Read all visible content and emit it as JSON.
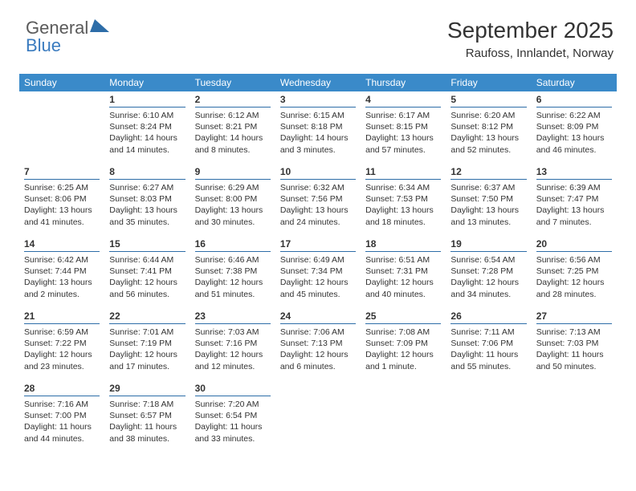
{
  "logo": {
    "part1": "General",
    "part2": "Blue"
  },
  "header": {
    "month": "September 2025",
    "location": "Raufoss, Innlandet, Norway"
  },
  "colors": {
    "header_bg": "#3a8ac9",
    "header_fg": "#ffffff",
    "rule": "#2d6da8",
    "text": "#333333",
    "bg": "#ffffff"
  },
  "weekdays": [
    "Sunday",
    "Monday",
    "Tuesday",
    "Wednesday",
    "Thursday",
    "Friday",
    "Saturday"
  ],
  "cells": [
    {
      "day": "",
      "lines": []
    },
    {
      "day": "1",
      "lines": [
        "Sunrise: 6:10 AM",
        "Sunset: 8:24 PM",
        "Daylight: 14 hours and 14 minutes."
      ]
    },
    {
      "day": "2",
      "lines": [
        "Sunrise: 6:12 AM",
        "Sunset: 8:21 PM",
        "Daylight: 14 hours and 8 minutes."
      ]
    },
    {
      "day": "3",
      "lines": [
        "Sunrise: 6:15 AM",
        "Sunset: 8:18 PM",
        "Daylight: 14 hours and 3 minutes."
      ]
    },
    {
      "day": "4",
      "lines": [
        "Sunrise: 6:17 AM",
        "Sunset: 8:15 PM",
        "Daylight: 13 hours and 57 minutes."
      ]
    },
    {
      "day": "5",
      "lines": [
        "Sunrise: 6:20 AM",
        "Sunset: 8:12 PM",
        "Daylight: 13 hours and 52 minutes."
      ]
    },
    {
      "day": "6",
      "lines": [
        "Sunrise: 6:22 AM",
        "Sunset: 8:09 PM",
        "Daylight: 13 hours and 46 minutes."
      ]
    },
    {
      "day": "7",
      "lines": [
        "Sunrise: 6:25 AM",
        "Sunset: 8:06 PM",
        "Daylight: 13 hours and 41 minutes."
      ]
    },
    {
      "day": "8",
      "lines": [
        "Sunrise: 6:27 AM",
        "Sunset: 8:03 PM",
        "Daylight: 13 hours and 35 minutes."
      ]
    },
    {
      "day": "9",
      "lines": [
        "Sunrise: 6:29 AM",
        "Sunset: 8:00 PM",
        "Daylight: 13 hours and 30 minutes."
      ]
    },
    {
      "day": "10",
      "lines": [
        "Sunrise: 6:32 AM",
        "Sunset: 7:56 PM",
        "Daylight: 13 hours and 24 minutes."
      ]
    },
    {
      "day": "11",
      "lines": [
        "Sunrise: 6:34 AM",
        "Sunset: 7:53 PM",
        "Daylight: 13 hours and 18 minutes."
      ]
    },
    {
      "day": "12",
      "lines": [
        "Sunrise: 6:37 AM",
        "Sunset: 7:50 PM",
        "Daylight: 13 hours and 13 minutes."
      ]
    },
    {
      "day": "13",
      "lines": [
        "Sunrise: 6:39 AM",
        "Sunset: 7:47 PM",
        "Daylight: 13 hours and 7 minutes."
      ]
    },
    {
      "day": "14",
      "lines": [
        "Sunrise: 6:42 AM",
        "Sunset: 7:44 PM",
        "Daylight: 13 hours and 2 minutes."
      ]
    },
    {
      "day": "15",
      "lines": [
        "Sunrise: 6:44 AM",
        "Sunset: 7:41 PM",
        "Daylight: 12 hours and 56 minutes."
      ]
    },
    {
      "day": "16",
      "lines": [
        "Sunrise: 6:46 AM",
        "Sunset: 7:38 PM",
        "Daylight: 12 hours and 51 minutes."
      ]
    },
    {
      "day": "17",
      "lines": [
        "Sunrise: 6:49 AM",
        "Sunset: 7:34 PM",
        "Daylight: 12 hours and 45 minutes."
      ]
    },
    {
      "day": "18",
      "lines": [
        "Sunrise: 6:51 AM",
        "Sunset: 7:31 PM",
        "Daylight: 12 hours and 40 minutes."
      ]
    },
    {
      "day": "19",
      "lines": [
        "Sunrise: 6:54 AM",
        "Sunset: 7:28 PM",
        "Daylight: 12 hours and 34 minutes."
      ]
    },
    {
      "day": "20",
      "lines": [
        "Sunrise: 6:56 AM",
        "Sunset: 7:25 PM",
        "Daylight: 12 hours and 28 minutes."
      ]
    },
    {
      "day": "21",
      "lines": [
        "Sunrise: 6:59 AM",
        "Sunset: 7:22 PM",
        "Daylight: 12 hours and 23 minutes."
      ]
    },
    {
      "day": "22",
      "lines": [
        "Sunrise: 7:01 AM",
        "Sunset: 7:19 PM",
        "Daylight: 12 hours and 17 minutes."
      ]
    },
    {
      "day": "23",
      "lines": [
        "Sunrise: 7:03 AM",
        "Sunset: 7:16 PM",
        "Daylight: 12 hours and 12 minutes."
      ]
    },
    {
      "day": "24",
      "lines": [
        "Sunrise: 7:06 AM",
        "Sunset: 7:13 PM",
        "Daylight: 12 hours and 6 minutes."
      ]
    },
    {
      "day": "25",
      "lines": [
        "Sunrise: 7:08 AM",
        "Sunset: 7:09 PM",
        "Daylight: 12 hours and 1 minute."
      ]
    },
    {
      "day": "26",
      "lines": [
        "Sunrise: 7:11 AM",
        "Sunset: 7:06 PM",
        "Daylight: 11 hours and 55 minutes."
      ]
    },
    {
      "day": "27",
      "lines": [
        "Sunrise: 7:13 AM",
        "Sunset: 7:03 PM",
        "Daylight: 11 hours and 50 minutes."
      ]
    },
    {
      "day": "28",
      "lines": [
        "Sunrise: 7:16 AM",
        "Sunset: 7:00 PM",
        "Daylight: 11 hours and 44 minutes."
      ]
    },
    {
      "day": "29",
      "lines": [
        "Sunrise: 7:18 AM",
        "Sunset: 6:57 PM",
        "Daylight: 11 hours and 38 minutes."
      ]
    },
    {
      "day": "30",
      "lines": [
        "Sunrise: 7:20 AM",
        "Sunset: 6:54 PM",
        "Daylight: 11 hours and 33 minutes."
      ]
    },
    {
      "day": "",
      "lines": []
    },
    {
      "day": "",
      "lines": []
    },
    {
      "day": "",
      "lines": []
    },
    {
      "day": "",
      "lines": []
    }
  ]
}
